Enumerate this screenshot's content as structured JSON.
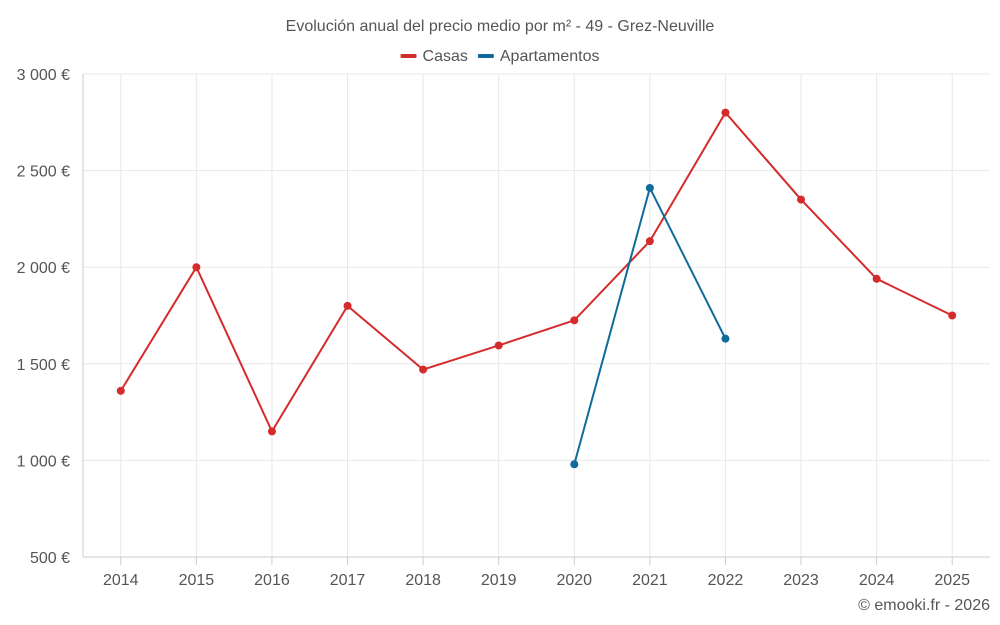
{
  "chart_data": {
    "type": "line",
    "title": "Evolución anual del precio medio por m² - 49 - Grez-Neuville",
    "categories": [
      "2014",
      "2015",
      "2016",
      "2017",
      "2018",
      "2019",
      "2020",
      "2021",
      "2022",
      "2023",
      "2024",
      "2025"
    ],
    "ylim": [
      500,
      3000
    ],
    "yticks": [
      500,
      1000,
      1500,
      2000,
      2500,
      3000
    ],
    "ytick_labels": [
      "500 €",
      "1 000 €",
      "1 500 €",
      "2 000 €",
      "2 500 €",
      "3 000 €"
    ],
    "grid": true,
    "legend_position": "top-center",
    "series": [
      {
        "name": "Casas",
        "color": "#d52b2b",
        "values": [
          1360,
          2000,
          1150,
          1800,
          1470,
          1595,
          1725,
          2135,
          2800,
          2350,
          1940,
          1750
        ]
      },
      {
        "name": "Apartamentos",
        "color": "#106a9a",
        "values": [
          null,
          null,
          null,
          null,
          null,
          null,
          980,
          2410,
          1630,
          null,
          null,
          null
        ]
      }
    ]
  },
  "credit": "© emooki.fr - 2026"
}
